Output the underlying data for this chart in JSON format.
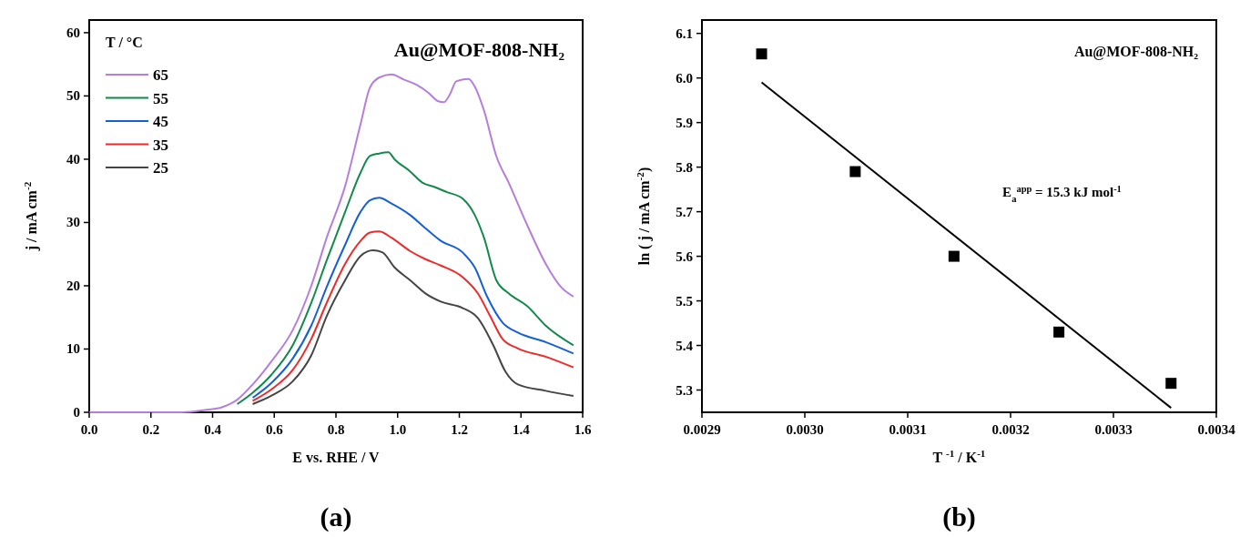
{
  "chart_data": [
    {
      "type": "line",
      "title": "Au@MOF-808-NH₂",
      "xlabel": "E vs. RHE / V",
      "ylabel": "j / mA cm$^{-2}$",
      "legend_title": "T / °C",
      "legend": "top left",
      "grid": false,
      "line_style": "solid",
      "xlim": [
        0,
        1.6
      ],
      "ylim": [
        0,
        62
      ],
      "xticks": [
        {
          "value": 0,
          "label": "0.0"
        },
        {
          "value": 0.2,
          "label": "0.2"
        },
        {
          "value": 0.4,
          "label": "0.4"
        },
        {
          "value": 0.6,
          "label": "0.6"
        },
        {
          "value": 0.8,
          "label": "0.8"
        },
        {
          "value": 1,
          "label": "1.0"
        },
        {
          "value": 1.2,
          "label": "1.2"
        },
        {
          "value": 1.4,
          "label": "1.4"
        },
        {
          "value": 1.6,
          "label": "1.6"
        }
      ],
      "yticks": [
        0,
        10,
        20,
        30,
        40,
        50,
        60
      ],
      "annotations": [
        "(a)"
      ],
      "series": [
        {
          "name": "65",
          "color": "#b57edc",
          "x": [
            0,
            0.3,
            0.38,
            0.43,
            0.48,
            0.53,
            0.59,
            0.66,
            0.72,
            0.77,
            0.83,
            0.88,
            0.91,
            0.94,
            0.98,
            1.02,
            1.06,
            1.1,
            1.13,
            1.15,
            1.17,
            1.19,
            1.23,
            1.25,
            1.28,
            1.32,
            1.36,
            1.42,
            1.48,
            1.53,
            1.57
          ],
          "values": [
            0,
            0,
            0.4,
            0.8,
            2,
            4.4,
            8,
            13,
            20,
            27.6,
            35.8,
            45.6,
            51.3,
            52.9,
            53.4,
            52.6,
            51.8,
            50.5,
            49.2,
            49,
            50.3,
            52.3,
            52.7,
            51.5,
            47.7,
            40.5,
            36.3,
            29.6,
            23.5,
            19.8,
            18.3
          ]
        },
        {
          "name": "55",
          "color": "#138a4b",
          "x": [
            0.48,
            0.53,
            0.59,
            0.66,
            0.72,
            0.77,
            0.83,
            0.88,
            0.91,
            0.94,
            0.97,
            0.99,
            1.04,
            1.08,
            1.12,
            1.16,
            1.21,
            1.25,
            1.28,
            1.32,
            1.36,
            1.42,
            1.48,
            1.57
          ],
          "values": [
            1.3,
            3.1,
            5.9,
            10.6,
            17.3,
            24,
            31.7,
            37.9,
            40.5,
            40.9,
            41.1,
            40,
            38.1,
            36.3,
            35.6,
            34.8,
            33.8,
            31.2,
            27.6,
            20.9,
            18.8,
            16.8,
            13.7,
            10.6
          ]
        },
        {
          "name": "45",
          "color": "#1560d4",
          "x": [
            0.53,
            0.59,
            0.66,
            0.72,
            0.77,
            0.83,
            0.88,
            0.91,
            0.94,
            0.98,
            1.04,
            1.09,
            1.14,
            1.21,
            1.25,
            1.29,
            1.34,
            1.39,
            1.48,
            1.57
          ],
          "values": [
            2.3,
            4.6,
            8.5,
            13.7,
            19.8,
            26.5,
            31.7,
            33.5,
            33.9,
            33,
            31.2,
            29.1,
            27.1,
            25.3,
            22.9,
            18.3,
            14.2,
            12.6,
            11.1,
            9.3
          ]
        },
        {
          "name": "35",
          "color": "#ee2a2a",
          "x": [
            0.53,
            0.59,
            0.66,
            0.72,
            0.77,
            0.83,
            0.88,
            0.91,
            0.94,
            0.98,
            1.04,
            1.09,
            1.14,
            1.21,
            1.26,
            1.3,
            1.34,
            1.39,
            1.48,
            1.57
          ],
          "values": [
            1.8,
            3.6,
            6.7,
            11.6,
            17.3,
            23.5,
            27.1,
            28.4,
            28.6,
            27.6,
            25.5,
            24.2,
            23.2,
            21.4,
            18.8,
            15.2,
            11.6,
            10.1,
            8.8,
            7.1
          ]
        },
        {
          "name": "25",
          "color": "#454545",
          "x": [
            0.53,
            0.59,
            0.66,
            0.72,
            0.77,
            0.83,
            0.88,
            0.92,
            0.95,
            0.99,
            1.04,
            1.09,
            1.14,
            1.21,
            1.26,
            1.31,
            1.35,
            1.39,
            1.48,
            1.57
          ],
          "values": [
            1.3,
            2.6,
            4.9,
            9,
            15.2,
            20.9,
            24.7,
            25.6,
            25.3,
            22.9,
            20.9,
            18.8,
            17.5,
            16.5,
            14.9,
            10.6,
            6.4,
            4.4,
            3.4,
            2.6
          ]
        }
      ]
    },
    {
      "type": "scatter",
      "title": "Au@MOF-808-NH₂",
      "xlabel": "T $^{-1}$ / K$^{-1}$",
      "ylabel": "ln ( j / mA cm$^{-2}$)",
      "grid": false,
      "marker": "square",
      "legend": false,
      "xlim": [
        0.0029,
        0.0034
      ],
      "ylim": [
        5.25,
        6.13
      ],
      "xticks": [
        {
          "value": 0.0029,
          "label": "0.0029"
        },
        {
          "value": 0.003,
          "label": "0.0030"
        },
        {
          "value": 0.0031,
          "label": "0.0031"
        },
        {
          "value": 0.0032,
          "label": "0.0032"
        },
        {
          "value": 0.0033,
          "label": "0.0033"
        },
        {
          "value": 0.0034,
          "label": "0.0034"
        }
      ],
      "yticks": [
        5.3,
        5.4,
        5.5,
        5.6,
        5.7,
        5.8,
        5.9,
        {
          "value": 6,
          "label": "6.0"
        },
        6.1
      ],
      "annotations": [
        "E$_{a}$$^{app}$ = 15.3 kJ mol$^{-1}$",
        "(b)"
      ],
      "series": [
        {
          "color": "#000000",
          "x": [
            0.002958,
            0.003049,
            0.003145,
            0.003247,
            0.003356
          ],
          "values": [
            6.054,
            5.79,
            5.6,
            5.43,
            5.315
          ]
        },
        {
          "type": "line",
          "marker": "none",
          "color": "#000000",
          "x": [
            0.002958,
            0.003356
          ],
          "values": [
            5.99,
            5.26
          ]
        }
      ]
    }
  ]
}
